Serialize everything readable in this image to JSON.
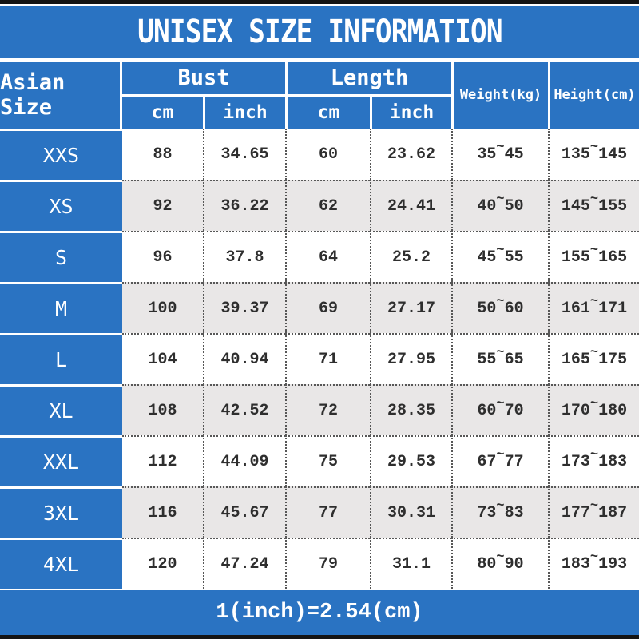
{
  "title": "UNISEX SIZE INFORMATION",
  "footer_note": "1(inch)=2.54(cm)",
  "colors": {
    "blue": "#2a73c2",
    "alt_row": "#e9e7e7",
    "bar_black": "#141414",
    "text_dark": "#2e2e2e",
    "text_white": "#ffffff"
  },
  "table": {
    "col_size": "Asian Size",
    "group_bust": "Bust",
    "group_length": "Length",
    "sub_cm": "cm",
    "sub_inch": "inch",
    "col_weight": "Weight(kg)",
    "col_height": "Height(cm)",
    "tilde": "~",
    "rows": [
      {
        "size": "XXS",
        "bust_cm": "88",
        "bust_in": "34.65",
        "len_cm": "60",
        "len_in": "23.62",
        "w_min": "35",
        "w_max": "45",
        "h_min": "135",
        "h_max": "145"
      },
      {
        "size": "XS",
        "bust_cm": "92",
        "bust_in": "36.22",
        "len_cm": "62",
        "len_in": "24.41",
        "w_min": "40",
        "w_max": "50",
        "h_min": "145",
        "h_max": "155"
      },
      {
        "size": "S",
        "bust_cm": "96",
        "bust_in": "37.8",
        "len_cm": "64",
        "len_in": "25.2",
        "w_min": "45",
        "w_max": "55",
        "h_min": "155",
        "h_max": "165"
      },
      {
        "size": "M",
        "bust_cm": "100",
        "bust_in": "39.37",
        "len_cm": "69",
        "len_in": "27.17",
        "w_min": "50",
        "w_max": "60",
        "h_min": "161",
        "h_max": "171"
      },
      {
        "size": "L",
        "bust_cm": "104",
        "bust_in": "40.94",
        "len_cm": "71",
        "len_in": "27.95",
        "w_min": "55",
        "w_max": "65",
        "h_min": "165",
        "h_max": "175"
      },
      {
        "size": "XL",
        "bust_cm": "108",
        "bust_in": "42.52",
        "len_cm": "72",
        "len_in": "28.35",
        "w_min": "60",
        "w_max": "70",
        "h_min": "170",
        "h_max": "180"
      },
      {
        "size": "XXL",
        "bust_cm": "112",
        "bust_in": "44.09",
        "len_cm": "75",
        "len_in": "29.53",
        "w_min": "67",
        "w_max": "77",
        "h_min": "173",
        "h_max": "183"
      },
      {
        "size": "3XL",
        "bust_cm": "116",
        "bust_in": "45.67",
        "len_cm": "77",
        "len_in": "30.31",
        "w_min": "73",
        "w_max": "83",
        "h_min": "177",
        "h_max": "187"
      },
      {
        "size": "4XL",
        "bust_cm": "120",
        "bust_in": "47.24",
        "len_cm": "79",
        "len_in": "31.1",
        "w_min": "80",
        "w_max": "90",
        "h_min": "183",
        "h_max": "193"
      }
    ]
  },
  "chart_data": {
    "type": "table",
    "title": "UNISEX SIZE INFORMATION",
    "columns": [
      "Asian Size",
      "Bust cm",
      "Bust inch",
      "Length cm",
      "Length inch",
      "Weight(kg)",
      "Height(cm)"
    ],
    "rows": [
      [
        "XXS",
        88,
        34.65,
        60,
        23.62,
        "35~45",
        "135~145"
      ],
      [
        "XS",
        92,
        36.22,
        62,
        24.41,
        "40~50",
        "145~155"
      ],
      [
        "S",
        96,
        37.8,
        64,
        25.2,
        "45~55",
        "155~165"
      ],
      [
        "M",
        100,
        39.37,
        69,
        27.17,
        "50~60",
        "161~171"
      ],
      [
        "L",
        104,
        40.94,
        71,
        27.95,
        "55~65",
        "165~175"
      ],
      [
        "XL",
        108,
        42.52,
        72,
        28.35,
        "60~70",
        "170~180"
      ],
      [
        "XXL",
        112,
        44.09,
        75,
        29.53,
        "67~77",
        "173~183"
      ],
      [
        "3XL",
        116,
        45.67,
        77,
        30.31,
        "73~83",
        "177~187"
      ],
      [
        "4XL",
        120,
        47.24,
        79,
        31.1,
        "80~90",
        "183~193"
      ]
    ],
    "footnote": "1(inch)=2.54(cm)"
  }
}
